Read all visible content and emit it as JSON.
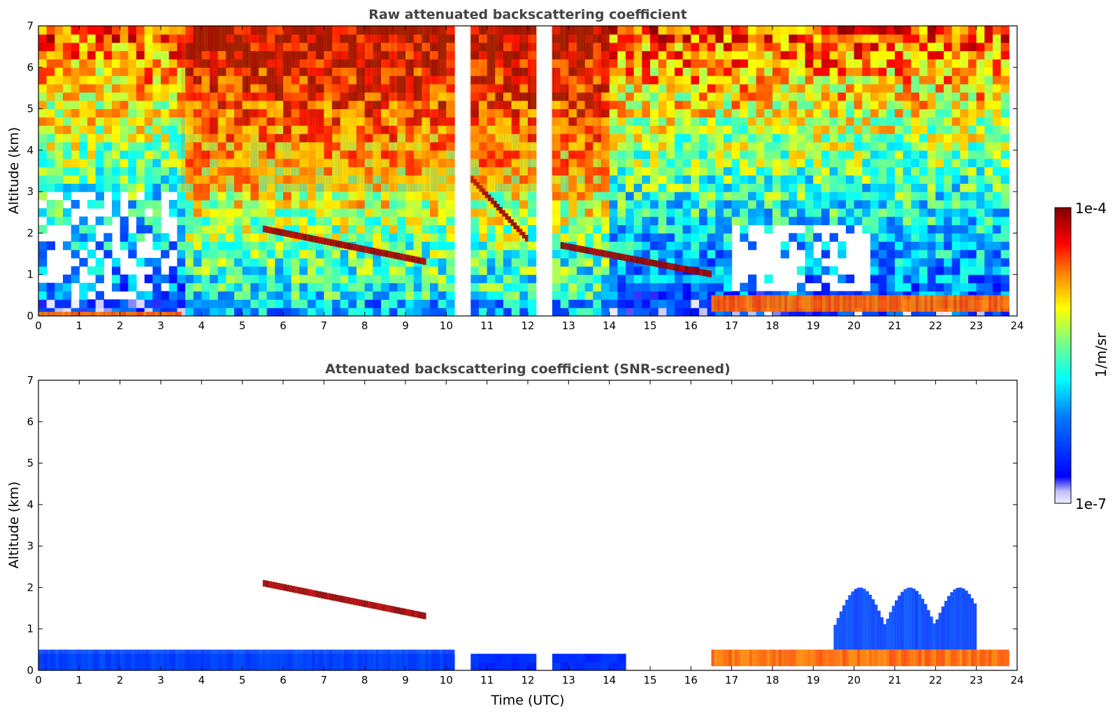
{
  "chart_data": [
    {
      "type": "heatmap",
      "title": "Raw attenuated backscattering coefficient",
      "xlabel": "",
      "ylabel": "Altitude (km)",
      "xlim": [
        0,
        24
      ],
      "ylim": [
        0,
        7
      ],
      "x_ticks": [
        "0",
        "1",
        "2",
        "3",
        "4",
        "5",
        "6",
        "7",
        "8",
        "9",
        "10",
        "11",
        "12",
        "13",
        "14",
        "15",
        "16",
        "17",
        "18",
        "19",
        "20",
        "21",
        "22",
        "23",
        "24"
      ],
      "y_ticks": [
        "0",
        "1",
        "2",
        "3",
        "4",
        "5",
        "6",
        "7"
      ],
      "data_gaps_utc": [
        [
          10.2,
          10.55
        ],
        [
          12.25,
          12.6
        ]
      ],
      "features": [
        {
          "kind": "surface layer",
          "x": [
            0,
            3.5
          ],
          "altitude_km": [
            0,
            0.1
          ],
          "level": "high"
        },
        {
          "kind": "cloud layer",
          "x": [
            5.5,
            9.5
          ],
          "altitude_km": [
            1.3,
            2.1
          ],
          "level": "very high"
        },
        {
          "kind": "cloud layer",
          "x": [
            10.6,
            12.0
          ],
          "altitude_km": [
            1.8,
            3.3
          ],
          "level": "very high"
        },
        {
          "kind": "cloud layer",
          "x": [
            12.8,
            16.5
          ],
          "altitude_km": [
            1.0,
            1.7
          ],
          "level": "very high"
        },
        {
          "kind": "boundary layer",
          "x": [
            16.5,
            23.8
          ],
          "altitude_km": [
            0.1,
            0.5
          ],
          "level": "high"
        },
        {
          "kind": "noise",
          "x": [
            3.5,
            14
          ],
          "altitude_km": [
            3,
            7
          ],
          "level": "high"
        }
      ]
    },
    {
      "type": "heatmap",
      "title": "Attenuated backscattering coefficient (SNR-screened)",
      "xlabel": "Time (UTC)",
      "ylabel": "Altitude (km)",
      "xlim": [
        0,
        24
      ],
      "ylim": [
        0,
        7
      ],
      "x_ticks": [
        "0",
        "1",
        "2",
        "3",
        "4",
        "5",
        "6",
        "7",
        "8",
        "9",
        "10",
        "11",
        "12",
        "13",
        "14",
        "15",
        "16",
        "17",
        "18",
        "19",
        "20",
        "21",
        "22",
        "23",
        "24"
      ],
      "y_ticks": [
        "0",
        "1",
        "2",
        "3",
        "4",
        "5",
        "6",
        "7"
      ],
      "features": [
        {
          "kind": "aerosol layer",
          "x": [
            0,
            10.2
          ],
          "altitude_km": [
            0,
            0.5
          ],
          "level": "low"
        },
        {
          "kind": "cloud layer",
          "x": [
            5.5,
            9.5
          ],
          "altitude_km": [
            1.3,
            2.1
          ],
          "level": "very high"
        },
        {
          "kind": "boundary layer",
          "x": [
            16.5,
            23.8
          ],
          "altitude_km": [
            0.1,
            0.5
          ],
          "level": "high"
        },
        {
          "kind": "aerosol plumes",
          "x": [
            19.5,
            23
          ],
          "altitude_km": [
            0.5,
            2.0
          ],
          "level": "low"
        }
      ]
    }
  ],
  "colorbar": {
    "label": "1/m/sr",
    "max_label": "1e-4",
    "min_label": "1e-7",
    "scale": "log",
    "colormap": "jet",
    "colors": [
      "#eeeeff",
      "#c0c0ff",
      "#0000ff",
      "#0080ff",
      "#00ffff",
      "#80ff80",
      "#ffff00",
      "#ff8000",
      "#ff0000",
      "#800000"
    ]
  }
}
